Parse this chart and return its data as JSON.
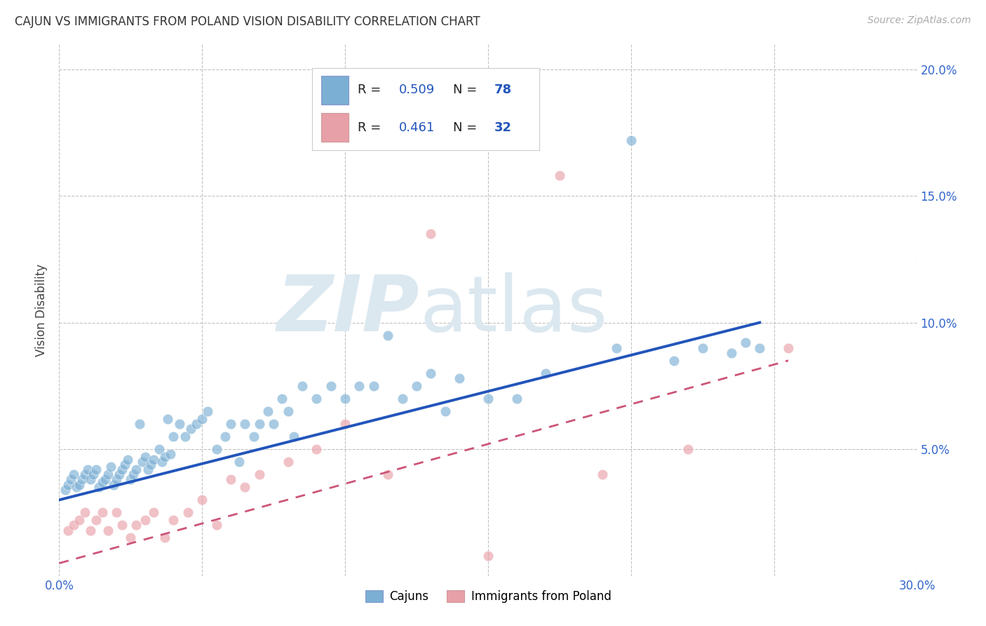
{
  "title": "CAJUN VS IMMIGRANTS FROM POLAND VISION DISABILITY CORRELATION CHART",
  "source": "Source: ZipAtlas.com",
  "ylabel": "Vision Disability",
  "x_min": 0.0,
  "x_max": 0.3,
  "y_min": 0.0,
  "y_max": 0.21,
  "cajun_R": "0.509",
  "cajun_N": "78",
  "poland_R": "0.461",
  "poland_N": "32",
  "cajun_color": "#7bafd4",
  "poland_color": "#e8a0a8",
  "cajun_line_color": "#2255bb",
  "poland_line_color": "#cc5577",
  "tick_color": "#3366cc",
  "watermark_zip": "ZIP",
  "watermark_atlas": "atlas",
  "watermark_color": "#dce8f0",
  "cajun_x": [
    0.002,
    0.003,
    0.004,
    0.005,
    0.006,
    0.007,
    0.008,
    0.009,
    0.01,
    0.011,
    0.012,
    0.013,
    0.014,
    0.015,
    0.016,
    0.017,
    0.018,
    0.019,
    0.02,
    0.021,
    0.022,
    0.023,
    0.024,
    0.025,
    0.026,
    0.027,
    0.028,
    0.029,
    0.03,
    0.031,
    0.032,
    0.033,
    0.035,
    0.036,
    0.037,
    0.038,
    0.039,
    0.04,
    0.042,
    0.044,
    0.046,
    0.048,
    0.05,
    0.052,
    0.055,
    0.058,
    0.06,
    0.063,
    0.065,
    0.068,
    0.07,
    0.073,
    0.075,
    0.078,
    0.08,
    0.082,
    0.085,
    0.09,
    0.095,
    0.1,
    0.105,
    0.11,
    0.115,
    0.12,
    0.125,
    0.13,
    0.135,
    0.14,
    0.15,
    0.16,
    0.17,
    0.195,
    0.2,
    0.215,
    0.225,
    0.235,
    0.24,
    0.245
  ],
  "cajun_y": [
    0.034,
    0.036,
    0.038,
    0.04,
    0.035,
    0.036,
    0.038,
    0.04,
    0.042,
    0.038,
    0.04,
    0.042,
    0.035,
    0.037,
    0.038,
    0.04,
    0.043,
    0.036,
    0.038,
    0.04,
    0.042,
    0.044,
    0.046,
    0.038,
    0.04,
    0.042,
    0.06,
    0.045,
    0.047,
    0.042,
    0.044,
    0.046,
    0.05,
    0.045,
    0.047,
    0.062,
    0.048,
    0.055,
    0.06,
    0.055,
    0.058,
    0.06,
    0.062,
    0.065,
    0.05,
    0.055,
    0.06,
    0.045,
    0.06,
    0.055,
    0.06,
    0.065,
    0.06,
    0.07,
    0.065,
    0.055,
    0.075,
    0.07,
    0.075,
    0.07,
    0.075,
    0.075,
    0.095,
    0.07,
    0.075,
    0.08,
    0.065,
    0.078,
    0.07,
    0.07,
    0.08,
    0.09,
    0.172,
    0.085,
    0.09,
    0.088,
    0.092,
    0.09
  ],
  "poland_x": [
    0.003,
    0.005,
    0.007,
    0.009,
    0.011,
    0.013,
    0.015,
    0.017,
    0.02,
    0.022,
    0.025,
    0.027,
    0.03,
    0.033,
    0.037,
    0.04,
    0.045,
    0.05,
    0.055,
    0.06,
    0.065,
    0.07,
    0.08,
    0.09,
    0.1,
    0.115,
    0.13,
    0.15,
    0.175,
    0.19,
    0.22,
    0.255
  ],
  "poland_y": [
    0.018,
    0.02,
    0.022,
    0.025,
    0.018,
    0.022,
    0.025,
    0.018,
    0.025,
    0.02,
    0.015,
    0.02,
    0.022,
    0.025,
    0.015,
    0.022,
    0.025,
    0.03,
    0.02,
    0.038,
    0.035,
    0.04,
    0.045,
    0.05,
    0.06,
    0.04,
    0.135,
    0.008,
    0.158,
    0.04,
    0.05,
    0.09
  ],
  "cajun_line_x0": 0.0,
  "cajun_line_y0": 0.03,
  "cajun_line_x1": 0.245,
  "cajun_line_y1": 0.1,
  "poland_line_x0": 0.0,
  "poland_line_y0": 0.005,
  "poland_line_x1": 0.255,
  "poland_line_y1": 0.085
}
